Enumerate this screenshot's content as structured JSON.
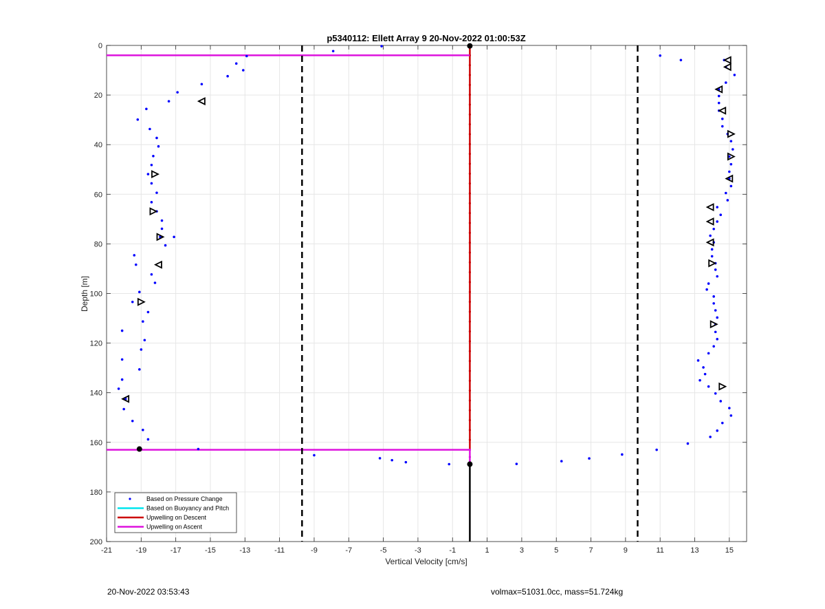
{
  "chart_data": {
    "type": "scatter",
    "title": "p5340112: Ellett Array 9 20-Nov-2022 01:00:53Z",
    "xlabel": "Vertical Velocity [cm/s]",
    "ylabel": "Depth [m]",
    "xlim": [
      -21,
      16
    ],
    "ylim": [
      0,
      200
    ],
    "y_reversed": true,
    "grid": true,
    "xticks": [
      -21,
      -19,
      -17,
      -15,
      -13,
      -11,
      -9,
      -7,
      -5,
      -3,
      -1,
      1,
      3,
      5,
      7,
      9,
      11,
      13,
      15
    ],
    "yticks": [
      0,
      20,
      40,
      60,
      80,
      100,
      120,
      140,
      160,
      180,
      200
    ],
    "legend_position": "bottom-left",
    "legend": [
      {
        "label": "Based on Pressure Change",
        "color": "#0000ff",
        "kind": "marker"
      },
      {
        "label": "Based on Buoyancy and Pitch",
        "color": "#00e5ee",
        "kind": "line"
      },
      {
        "label": "Upwelling on Descent",
        "color": "#cc0000",
        "kind": "line"
      },
      {
        "label": "Upwelling on Ascent",
        "color": "#dd11dd",
        "kind": "line"
      }
    ],
    "pressure_change": {
      "color": "#0000ff",
      "points": [
        [
          -5.1,
          0.3
        ],
        [
          -7.9,
          2.3
        ],
        [
          -12.9,
          4.3
        ],
        [
          -13.5,
          7.3
        ],
        [
          -13.1,
          10.0
        ],
        [
          -14.0,
          12.4
        ],
        [
          -15.5,
          15.6
        ],
        [
          -16.9,
          18.9
        ],
        [
          -17.4,
          22.5
        ],
        [
          -18.7,
          25.6
        ],
        [
          -19.2,
          29.9
        ],
        [
          -18.5,
          33.7
        ],
        [
          -18.1,
          37.3
        ],
        [
          -18.0,
          40.7
        ],
        [
          -18.3,
          44.6
        ],
        [
          -18.4,
          48.2
        ],
        [
          -18.6,
          51.9
        ],
        [
          -18.4,
          55.6
        ],
        [
          -18.1,
          59.4
        ],
        [
          -18.4,
          63.2
        ],
        [
          -18.1,
          66.9
        ],
        [
          -17.8,
          70.6
        ],
        [
          -17.8,
          73.9
        ],
        [
          -17.9,
          77.2
        ],
        [
          -17.1,
          77.2
        ],
        [
          -17.6,
          80.6
        ],
        [
          -19.4,
          84.6
        ],
        [
          -19.3,
          88.4
        ],
        [
          -18.4,
          92.3
        ],
        [
          -18.2,
          95.7
        ],
        [
          -19.1,
          99.4
        ],
        [
          -19.5,
          103.4
        ],
        [
          -18.6,
          107.5
        ],
        [
          -18.9,
          111.3
        ],
        [
          -20.1,
          115.0
        ],
        [
          -18.8,
          118.8
        ],
        [
          -19.0,
          122.6
        ],
        [
          -20.1,
          126.6
        ],
        [
          -19.1,
          130.6
        ],
        [
          -20.1,
          134.7
        ],
        [
          -20.3,
          138.4
        ],
        [
          -19.9,
          142.5
        ],
        [
          -20.0,
          146.6
        ],
        [
          -19.5,
          151.4
        ],
        [
          -18.9,
          155.0
        ],
        [
          -18.6,
          158.8
        ],
        [
          -19.1,
          162.7
        ],
        [
          -15.7,
          162.7
        ],
        [
          -9.0,
          165.2
        ],
        [
          -5.2,
          166.4
        ],
        [
          -4.5,
          167.2
        ],
        [
          -3.7,
          168.0
        ],
        [
          -1.2,
          168.8
        ],
        [
          2.7,
          168.7
        ],
        [
          5.3,
          167.6
        ],
        [
          6.9,
          166.5
        ],
        [
          8.8,
          164.9
        ],
        [
          10.8,
          163.0
        ],
        [
          12.6,
          160.5
        ],
        [
          13.9,
          157.8
        ],
        [
          14.3,
          155.3
        ],
        [
          14.6,
          152.2
        ],
        [
          15.1,
          149.2
        ],
        [
          15.0,
          146.2
        ],
        [
          14.5,
          143.4
        ],
        [
          14.2,
          140.3
        ],
        [
          13.8,
          137.5
        ],
        [
          13.3,
          135.0
        ],
        [
          13.6,
          132.5
        ],
        [
          13.5,
          129.8
        ],
        [
          13.2,
          127.0
        ],
        [
          13.8,
          124.1
        ],
        [
          14.1,
          121.3
        ],
        [
          14.3,
          118.4
        ],
        [
          14.2,
          115.5
        ],
        [
          14.2,
          112.4
        ],
        [
          14.3,
          109.7
        ],
        [
          14.2,
          106.8
        ],
        [
          14.1,
          104.0
        ],
        [
          14.1,
          101.2
        ],
        [
          13.7,
          98.4
        ],
        [
          13.8,
          96.0
        ],
        [
          14.3,
          93.1
        ],
        [
          14.2,
          90.4
        ],
        [
          14.2,
          87.8
        ],
        [
          14.0,
          85.0
        ],
        [
          14.0,
          82.2
        ],
        [
          14.1,
          79.4
        ],
        [
          13.9,
          76.7
        ],
        [
          14.1,
          74.0
        ],
        [
          14.3,
          71.0
        ],
        [
          14.5,
          68.3
        ],
        [
          14.3,
          65.2
        ],
        [
          14.9,
          62.4
        ],
        [
          14.8,
          59.5
        ],
        [
          15.1,
          56.7
        ],
        [
          15.0,
          53.7
        ],
        [
          15.0,
          50.9
        ],
        [
          15.1,
          47.9
        ],
        [
          15.0,
          44.8
        ],
        [
          15.2,
          41.9
        ],
        [
          15.1,
          38.6
        ],
        [
          14.9,
          35.7
        ],
        [
          14.6,
          32.6
        ],
        [
          14.6,
          29.6
        ],
        [
          14.4,
          26.3
        ],
        [
          14.4,
          23.2
        ],
        [
          14.4,
          20.4
        ],
        [
          14.4,
          17.7
        ],
        [
          14.8,
          15.0
        ],
        [
          15.3,
          11.9
        ],
        [
          14.8,
          8.7
        ],
        [
          14.7,
          5.9
        ],
        [
          12.2,
          5.9
        ],
        [
          11.0,
          4.1
        ]
      ]
    },
    "triangle_markers": {
      "color": "#000000",
      "points": [
        [
          -15.5,
          22.5,
          "left"
        ],
        [
          -18.2,
          51.9,
          "right"
        ],
        [
          -18.3,
          66.9,
          "right"
        ],
        [
          -17.9,
          77.2,
          "right"
        ],
        [
          -18.0,
          88.4,
          "left"
        ],
        [
          -19.0,
          103.4,
          "right"
        ],
        [
          -19.9,
          142.5,
          "left"
        ],
        [
          14.9,
          5.9,
          "left"
        ],
        [
          14.9,
          8.7,
          "left"
        ],
        [
          14.4,
          17.7,
          "left"
        ],
        [
          14.6,
          26.3,
          "left"
        ],
        [
          15.1,
          35.7,
          "right"
        ],
        [
          15.1,
          44.8,
          "right"
        ],
        [
          15.0,
          53.7,
          "left"
        ],
        [
          13.9,
          65.2,
          "left"
        ],
        [
          13.9,
          71.0,
          "left"
        ],
        [
          13.9,
          79.4,
          "left"
        ],
        [
          14.0,
          87.8,
          "right"
        ],
        [
          14.1,
          112.4,
          "right"
        ],
        [
          14.6,
          137.5,
          "right"
        ]
      ]
    },
    "black_blobs": [
      [
        -19.1,
        162.7
      ],
      [
        0.0,
        0.2
      ],
      [
        0.0,
        168.8
      ]
    ],
    "lines": [
      {
        "name": "descent-profile",
        "color": "#cc0000",
        "style": "dotted",
        "points": [
          [
            0,
            0
          ],
          [
            0,
            163
          ]
        ]
      },
      {
        "name": "ascent-profile",
        "color": "#dd11dd",
        "style": "dotted",
        "points": [
          [
            0,
            163
          ],
          [
            0,
            168.8
          ]
        ]
      },
      {
        "name": "black-vertical",
        "color": "#000000",
        "style": "solid",
        "points": [
          [
            0,
            168.8
          ],
          [
            0,
            200
          ]
        ]
      },
      {
        "name": "ascent-top-horizontal",
        "color": "#dd11dd",
        "style": "solid",
        "points": [
          [
            -21,
            4
          ],
          [
            0,
            4
          ]
        ]
      },
      {
        "name": "ascent-bottom-horizontal",
        "color": "#dd11dd",
        "style": "solid",
        "points": [
          [
            -21,
            163
          ],
          [
            0,
            163
          ]
        ]
      },
      {
        "name": "left-dashed-bound",
        "color": "#000000",
        "style": "dashed",
        "points": [
          [
            -9.7,
            0
          ],
          [
            -9.7,
            200
          ]
        ]
      },
      {
        "name": "right-dashed-bound",
        "color": "#000000",
        "style": "dashed",
        "points": [
          [
            9.7,
            0
          ],
          [
            9.7,
            200
          ]
        ]
      }
    ]
  },
  "footer": {
    "left": "20-Nov-2022 03:53:43",
    "right": "volmax=51031.0cc, mass=51.724kg"
  }
}
